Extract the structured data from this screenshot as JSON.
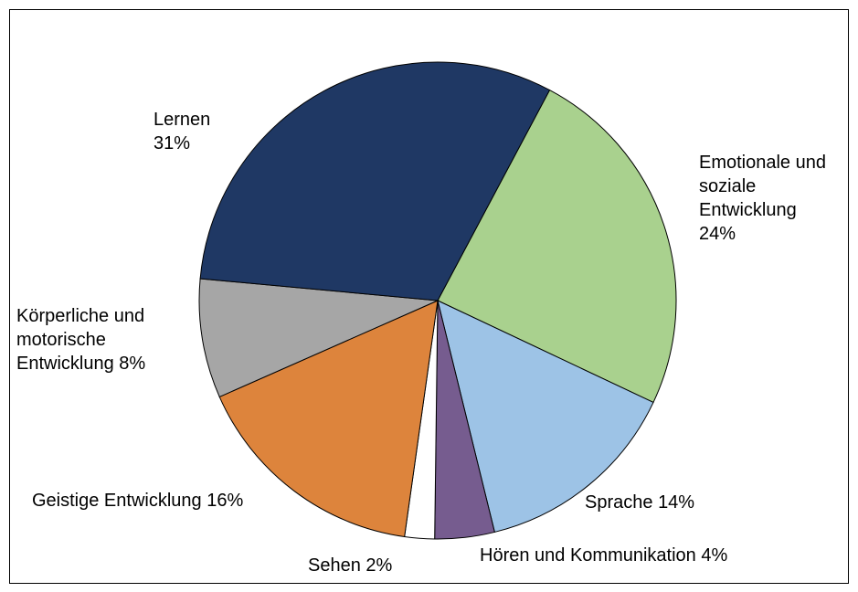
{
  "chart_data": {
    "type": "pie",
    "categories": [
      "Emotionale und soziale Entwicklung",
      "Sprache",
      "Hören und Kommunikation",
      "Sehen",
      "Geistige Entwicklung",
      "Körperliche und motorische Entwicklung",
      "Lernen"
    ],
    "values": [
      24,
      14,
      4,
      2,
      16,
      8,
      31
    ],
    "value_labels": [
      "24%",
      "14%",
      "4%",
      "2%",
      "16%",
      "8%",
      "31%"
    ],
    "colors": [
      "#a9d18e",
      "#9dc3e6",
      "#765c8f",
      "#ffffff",
      "#dd843c",
      "#a6a6a6",
      "#1f3864"
    ]
  }
}
